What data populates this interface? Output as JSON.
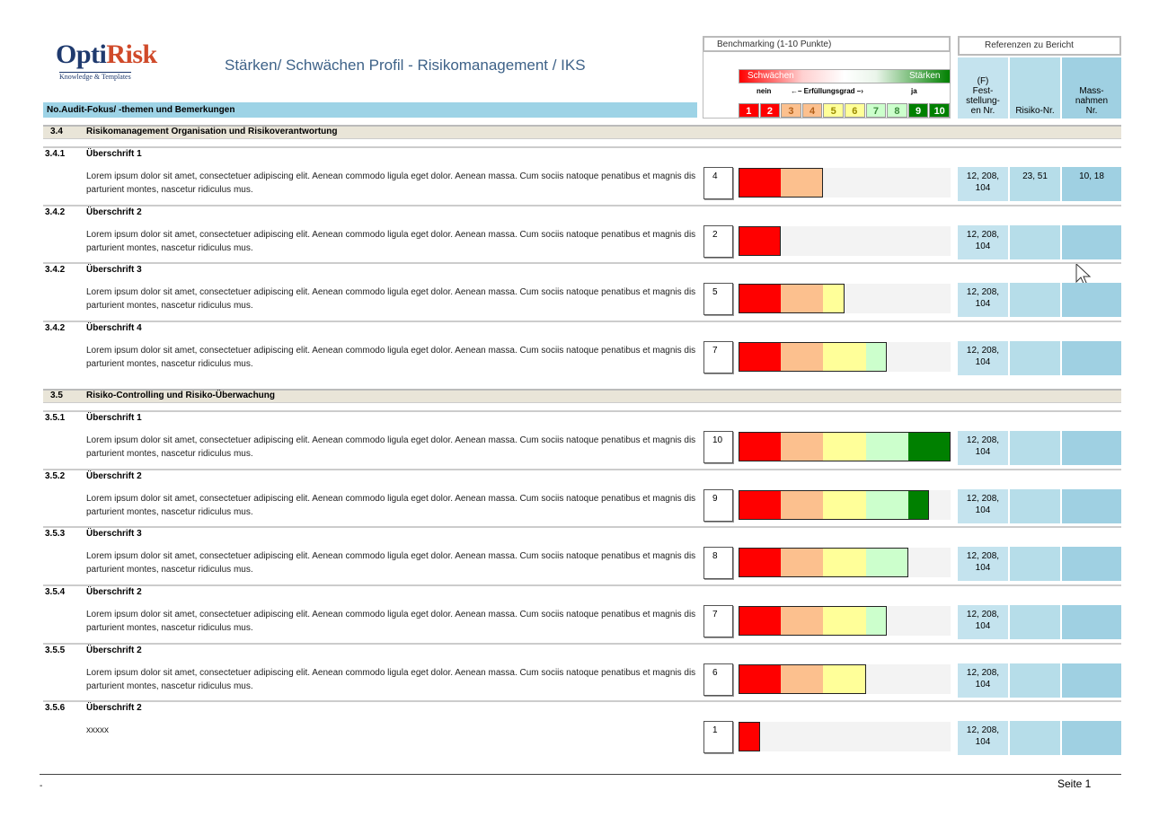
{
  "header": {
    "logo_opti": "Opti",
    "logo_risk": "Risk",
    "logo_sub": "Knowledge & Templates",
    "title": "Stärken/ Schwächen Profil - Risikomanagement / IKS",
    "column_label": "No.Audit-Fokus/ -themen und Bemerkungen"
  },
  "benchmark": {
    "title": "Benchmarking (1-10 Punkte)",
    "weak": "Schwächen",
    "strong": "Stärken",
    "no": "nein",
    "scale_caption": "←– Erfüllungsgrad –›",
    "yes": "ja",
    "scale": [
      1,
      2,
      3,
      4,
      5,
      6,
      7,
      8,
      9,
      10
    ],
    "max": 10
  },
  "references": {
    "title": "Referenzen zu Bericht",
    "columns": [
      "(F)\nFest-\nstellung-\nen Nr.",
      "Risiko-Nr.",
      "Mass-\nnahmen\nNr."
    ]
  },
  "sections": [
    {
      "number": "3.4",
      "title": "Risikomanagement Organisation und Risikoverantwortung",
      "items": [
        {
          "number": "3.4.1",
          "title": "Überschrift 1",
          "text": "Lorem ipsum dolor sit amet, consectetuer adipiscing elit. Aenean commodo ligula eget dolor. Aenean massa. Cum sociis natoque penatibus et magnis dis parturient montes, nascetur ridiculus mus.",
          "score": 4,
          "findings": "12, 208,\n104",
          "risk": "23, 51",
          "measures": "10, 18"
        },
        {
          "number": "3.4.2",
          "title": "Überschrift 2",
          "text": "Lorem ipsum dolor sit amet, consectetuer adipiscing elit. Aenean commodo ligula eget dolor. Aenean massa. Cum sociis natoque penatibus et magnis dis parturient montes, nascetur ridiculus mus.",
          "score": 2,
          "findings": "12, 208,\n104"
        },
        {
          "number": "3.4.2",
          "title": "Überschrift 3",
          "text": "Lorem ipsum dolor sit amet, consectetuer adipiscing elit. Aenean commodo ligula eget dolor. Aenean massa. Cum sociis natoque penatibus et magnis dis parturient montes, nascetur ridiculus mus.",
          "score": 5,
          "findings": "12, 208,\n104"
        },
        {
          "number": "3.4.2",
          "title": "Überschrift 4",
          "text": "Lorem ipsum dolor sit amet, consectetuer adipiscing elit. Aenean commodo ligula eget dolor. Aenean massa. Cum sociis natoque penatibus et magnis dis parturient montes, nascetur ridiculus mus.",
          "score": 7,
          "findings": "12, 208,\n104"
        }
      ]
    },
    {
      "number": "3.5",
      "title": "Risiko-Controlling und Risiko-Überwachung",
      "items": [
        {
          "number": "3.5.1",
          "title": "Überschrift 1",
          "text": "Lorem ipsum dolor sit amet, consectetuer adipiscing elit. Aenean commodo ligula eget dolor. Aenean massa. Cum sociis natoque penatibus et magnis dis parturient montes, nascetur ridiculus mus.",
          "score": 10,
          "findings": "12, 208,\n104"
        },
        {
          "number": "3.5.2",
          "title": "Überschrift 2",
          "text": "Lorem ipsum dolor sit amet, consectetuer adipiscing elit. Aenean commodo ligula eget dolor. Aenean massa. Cum sociis natoque penatibus et magnis dis parturient montes, nascetur ridiculus mus.",
          "score": 9,
          "findings": "12, 208,\n104"
        },
        {
          "number": "3.5.3",
          "title": "Überschrift 3",
          "text": "Lorem ipsum dolor sit amet, consectetuer adipiscing elit. Aenean commodo ligula eget dolor. Aenean massa. Cum sociis natoque penatibus et magnis dis parturient montes, nascetur ridiculus mus.",
          "score": 8,
          "findings": "12, 208,\n104"
        },
        {
          "number": "3.5.4",
          "title": "Überschrift 2",
          "text": "Lorem ipsum dolor sit amet, consectetuer adipiscing elit. Aenean commodo ligula eget dolor. Aenean massa. Cum sociis natoque penatibus et magnis dis parturient montes, nascetur ridiculus mus.",
          "score": 7,
          "findings": "12, 208,\n104"
        },
        {
          "number": "3.5.5",
          "title": "Überschrift 2",
          "text": "Lorem ipsum dolor sit amet, consectetuer adipiscing elit. Aenean commodo ligula eget dolor. Aenean massa. Cum sociis natoque penatibus et magnis dis parturient montes, nascetur ridiculus mus.",
          "score": 6,
          "findings": "12, 208,\n104"
        },
        {
          "number": "3.5.6",
          "title": "Überschrift 2",
          "text": "xxxxx",
          "score": 1,
          "findings": "12, 208,\n104"
        }
      ]
    }
  ],
  "footer": {
    "mark": "-",
    "page": "Seite 1"
  }
}
